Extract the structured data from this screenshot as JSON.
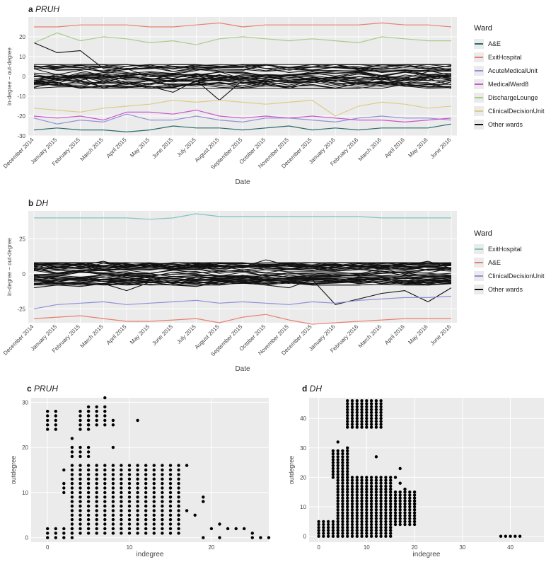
{
  "chart_data": [
    {
      "panel": "a",
      "type": "line",
      "title": "PRUH",
      "xlabel": "Date",
      "ylabel": "in-degree − out-degree",
      "ylim": [
        -30,
        30
      ],
      "y_ticks": [
        -30,
        -20,
        -10,
        0,
        10,
        20
      ],
      "x": [
        "December 2014",
        "January 2015",
        "February 2015",
        "March 2015",
        "April 2015",
        "May 2015",
        "June 2015",
        "July 2015",
        "August 2015",
        "September 2015",
        "October 2015",
        "November 2015",
        "December 2015",
        "January 2016",
        "February 2016",
        "March 2016",
        "April 2016",
        "May 2016",
        "June 2016"
      ],
      "legend_title": "Ward",
      "legend_position": "right",
      "series": [
        {
          "name": "A&E",
          "color": "#2a6b6b",
          "values": [
            -27,
            -26,
            -27,
            -27,
            -28,
            -27,
            -25,
            -26,
            -26,
            -27,
            -26,
            -25,
            -27,
            -26,
            -27,
            -26,
            -26,
            -26,
            -24
          ]
        },
        {
          "name": "ExitHospital",
          "color": "#e8806f",
          "values": [
            25,
            25,
            26,
            26,
            26,
            25,
            25,
            26,
            27,
            25,
            26,
            26,
            26,
            26,
            26,
            27,
            26,
            26,
            25
          ]
        },
        {
          "name": "AcuteMedicalUnit",
          "color": "#9090d8",
          "values": [
            -21,
            -24,
            -22,
            -23,
            -19,
            -22,
            -22,
            -20,
            -22,
            -23,
            -21,
            -21,
            -22,
            -23,
            -21,
            -20,
            -21,
            -21,
            -22
          ]
        },
        {
          "name": "MedicalWard8",
          "color": "#cc55cc",
          "values": [
            -20,
            -21,
            -20,
            -22,
            -18,
            -18,
            -19,
            -17,
            -20,
            -21,
            -20,
            -21,
            -20,
            -21,
            -22,
            -22,
            -23,
            -22,
            -21
          ]
        },
        {
          "name": "DischargeLounge",
          "color": "#a8cc88",
          "values": [
            17,
            22,
            18,
            20,
            19,
            17,
            18,
            16,
            19,
            20,
            19,
            18,
            19,
            18,
            17,
            20,
            19,
            18,
            18
          ]
        },
        {
          "name": "ClinicalDecisionUnit",
          "color": "#dccc88",
          "values": [
            -16,
            -17,
            -18,
            -16,
            -15,
            -14,
            -12,
            -13,
            -12,
            -13,
            -14,
            -13,
            -12,
            -20,
            -15,
            -13,
            -14,
            -16,
            -15
          ]
        }
      ],
      "other_series": {
        "name": "Other wards",
        "color": "#111111",
        "count": 34,
        "typical_range": [
          -6,
          6
        ],
        "outliers": [
          [
            17,
            12,
            13,
            4,
            2,
            0,
            1,
            3,
            5,
            6,
            4,
            2,
            3,
            5,
            4,
            2,
            3,
            1,
            0
          ],
          [
            -4,
            -2,
            0,
            -6,
            -3,
            -5,
            -8,
            -2,
            -12,
            -2,
            -4,
            -6,
            -3,
            -2,
            -4,
            -3,
            -5,
            -4,
            -2
          ]
        ]
      }
    },
    {
      "panel": "b",
      "type": "line",
      "title": "DH",
      "xlabel": "Date",
      "ylabel": "in-degree − out-degree",
      "ylim": [
        -35,
        45
      ],
      "y_ticks": [
        -25,
        0,
        25
      ],
      "x": [
        "December 2014",
        "January 2015",
        "February 2015",
        "March 2015",
        "April 2015",
        "May 2015",
        "June 2015",
        "July 2015",
        "August 2015",
        "September 2015",
        "October 2015",
        "November 2015",
        "December 2015",
        "January 2016",
        "February 2016",
        "March 2016",
        "April 2016",
        "May 2016",
        "June 2016"
      ],
      "legend_title": "Ward",
      "legend_position": "right",
      "series": [
        {
          "name": "ExitHospital",
          "color": "#7fc6bf",
          "values": [
            40,
            40,
            40,
            40,
            40,
            39,
            40,
            43,
            41,
            41,
            41,
            41,
            41,
            41,
            41,
            40,
            40,
            40,
            40
          ]
        },
        {
          "name": "A&E",
          "color": "#e8806f",
          "values": [
            -32,
            -31,
            -30,
            -32,
            -34,
            -34,
            -33,
            -32,
            -35,
            -31,
            -29,
            -33,
            -36,
            -35,
            -34,
            -33,
            -32,
            -32,
            -32
          ]
        },
        {
          "name": "ClinicalDecisionUnit",
          "color": "#9090d8",
          "values": [
            -25,
            -22,
            -21,
            -20,
            -22,
            -21,
            -20,
            -19,
            -21,
            -20,
            -21,
            -22,
            -20,
            -21,
            -19,
            -18,
            -17,
            -17,
            -16
          ]
        }
      ],
      "other_series": {
        "name": "Other wards",
        "color": "#111111",
        "count": 46,
        "typical_range": [
          -8,
          8
        ],
        "outliers": [
          [
            -10,
            -8,
            -9,
            -7,
            -12,
            -6,
            -8,
            -9,
            -6,
            -5,
            -8,
            -10,
            -4,
            -22,
            -18,
            -14,
            -12,
            -20,
            -10
          ],
          [
            4,
            8,
            6,
            9,
            5,
            7,
            3,
            6,
            4,
            5,
            10,
            6,
            4,
            2,
            3,
            5,
            6,
            9,
            4
          ]
        ]
      }
    },
    {
      "panel": "c",
      "type": "scatter",
      "title": "PRUH",
      "xlabel": "indegree",
      "ylabel": "outdegree",
      "xlim": [
        -2,
        27
      ],
      "ylim": [
        -1,
        31
      ],
      "x_ticks": [
        0,
        10,
        20
      ],
      "y_ticks": [
        0,
        10,
        20,
        30
      ],
      "clusters": [
        {
          "x": [
            0,
            1
          ],
          "y": [
            24,
            28
          ]
        },
        {
          "x": [
            4,
            5
          ],
          "y": [
            24,
            28
          ]
        },
        {
          "x": [
            5,
            7
          ],
          "y": [
            25,
            29
          ]
        },
        {
          "x": 7,
          "y": 31
        },
        {
          "x": 8,
          "y": [
            25,
            26
          ]
        },
        {
          "x": 11,
          "y": 26
        },
        {
          "x": [
            3,
            5
          ],
          "y": [
            18,
            20
          ]
        },
        {
          "x": 8,
          "y": 20
        },
        {
          "x": [
            3,
            16
          ],
          "y": [
            1,
            16
          ]
        },
        {
          "x": [
            0,
            3
          ],
          "y": [
            0,
            2
          ]
        },
        {
          "x": 2,
          "y": 15
        },
        {
          "x": 3,
          "y": 22
        },
        {
          "x": 2,
          "y": [
            10,
            12
          ]
        }
      ],
      "points": [
        [
          17,
          16
        ],
        [
          15,
          11
        ],
        [
          15,
          9
        ],
        [
          16,
          7
        ],
        [
          17,
          6
        ],
        [
          16,
          5
        ],
        [
          18,
          5
        ],
        [
          19,
          9
        ],
        [
          19,
          8
        ],
        [
          20,
          2
        ],
        [
          21,
          3
        ],
        [
          22,
          2
        ],
        [
          23,
          2
        ],
        [
          24,
          2
        ],
        [
          25,
          1
        ],
        [
          19,
          0
        ],
        [
          21,
          0
        ],
        [
          25,
          0
        ],
        [
          26,
          0
        ],
        [
          27,
          0
        ]
      ]
    },
    {
      "panel": "d",
      "type": "scatter",
      "title": "DH",
      "xlabel": "indegree",
      "ylabel": "outdegree",
      "xlim": [
        -2,
        47
      ],
      "ylim": [
        -2,
        47
      ],
      "x_ticks": [
        0,
        10,
        20,
        30,
        40
      ],
      "y_ticks": [
        0,
        10,
        20,
        30,
        40
      ],
      "clusters": [
        {
          "x": [
            0,
            4
          ],
          "y": [
            0,
            5
          ]
        },
        {
          "x": [
            4,
            15
          ],
          "y": [
            0,
            20
          ]
        },
        {
          "x": [
            16,
            20
          ],
          "y": [
            4,
            15
          ]
        },
        {
          "x": [
            3,
            6
          ],
          "y": [
            20,
            29
          ]
        },
        {
          "x": [
            6,
            13
          ],
          "y": [
            37,
            46
          ]
        }
      ],
      "points": [
        [
          17,
          18
        ],
        [
          18,
          16
        ],
        [
          19,
          12
        ],
        [
          20,
          11
        ],
        [
          16,
          20
        ],
        [
          17,
          23
        ],
        [
          12,
          27
        ],
        [
          4,
          32
        ],
        [
          6,
          30
        ],
        [
          38,
          0
        ],
        [
          39,
          0
        ],
        [
          40,
          0
        ],
        [
          41,
          0
        ],
        [
          42,
          0
        ]
      ]
    }
  ]
}
